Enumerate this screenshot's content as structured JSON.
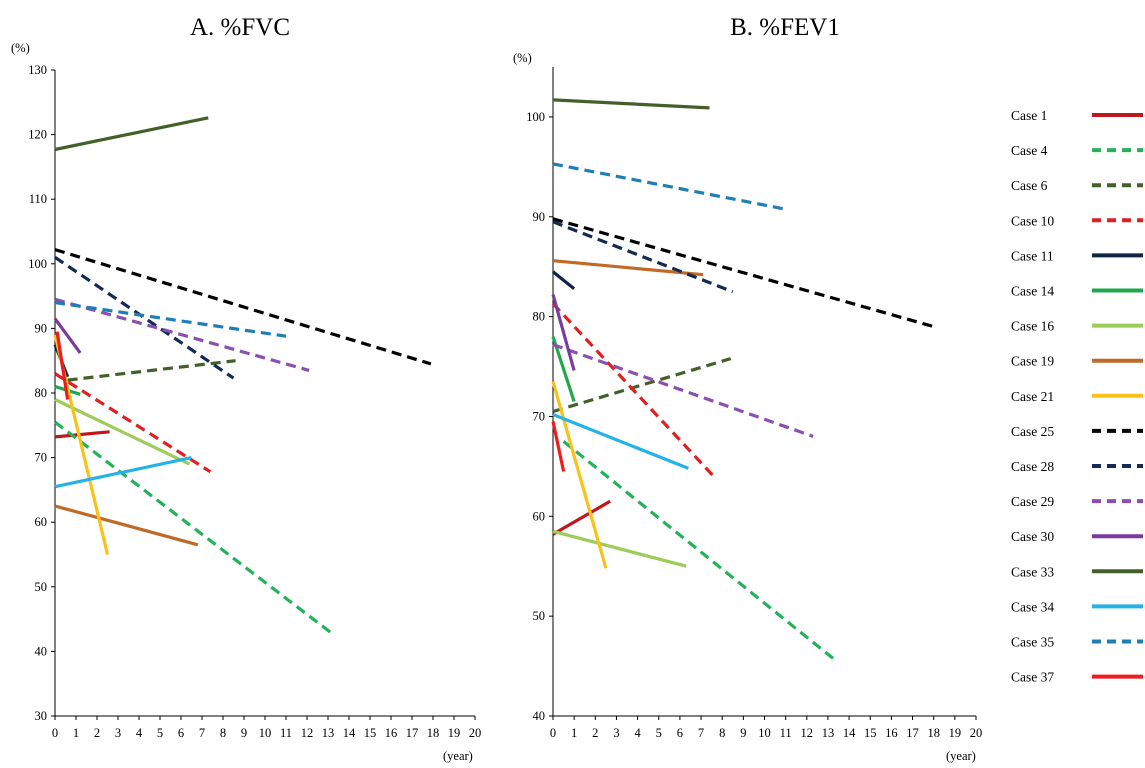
{
  "chart_data": [
    {
      "type": "line",
      "title": "A. %FVC",
      "y_unit": "(%)",
      "x_unit": "(year)",
      "xlim": [
        0,
        20
      ],
      "ylim": [
        30,
        130
      ],
      "xticks": [
        0,
        1,
        2,
        3,
        4,
        5,
        6,
        7,
        8,
        9,
        10,
        11,
        12,
        13,
        14,
        15,
        16,
        17,
        18,
        19,
        20
      ],
      "yticks": [
        30,
        40,
        50,
        60,
        70,
        80,
        90,
        100,
        110,
        120,
        130
      ],
      "grid": false,
      "series": [
        {
          "name": "Case 1",
          "x": [
            0,
            2.6
          ],
          "y": [
            73.2,
            74
          ]
        },
        {
          "name": "Case 4",
          "x": [
            0,
            13.1
          ],
          "y": [
            75.5,
            43
          ]
        },
        {
          "name": "Case 6",
          "x": [
            0.6,
            8.6
          ],
          "y": [
            82,
            85
          ]
        },
        {
          "name": "Case 10",
          "x": [
            0,
            7.4
          ],
          "y": [
            83,
            67.8
          ]
        },
        {
          "name": "Case 11",
          "x": [
            0,
            0.6
          ],
          "y": [
            87.5,
            82.5
          ]
        },
        {
          "name": "Case 14",
          "x": [
            0,
            1.2
          ],
          "y": [
            81,
            79.8
          ]
        },
        {
          "name": "Case 16",
          "x": [
            0,
            6.4
          ],
          "y": [
            79,
            69
          ]
        },
        {
          "name": "Case 19",
          "x": [
            0,
            6.8
          ],
          "y": [
            62.5,
            56.5
          ]
        },
        {
          "name": "Case 21",
          "x": [
            0,
            2.5
          ],
          "y": [
            89,
            55
          ]
        },
        {
          "name": "Case 25",
          "x": [
            0,
            17.9
          ],
          "y": [
            102.2,
            84.5
          ]
        },
        {
          "name": "Case 28",
          "x": [
            0,
            8.5
          ],
          "y": [
            101,
            82.3
          ]
        },
        {
          "name": "Case 29",
          "x": [
            0,
            12.1
          ],
          "y": [
            94.5,
            83.5
          ]
        },
        {
          "name": "Case 30",
          "x": [
            0,
            1.2
          ],
          "y": [
            91.5,
            86.2
          ]
        },
        {
          "name": "Case 33",
          "x": [
            0,
            7.3
          ],
          "y": [
            117.7,
            122.6
          ]
        },
        {
          "name": "Case 34",
          "x": [
            0,
            6.5
          ],
          "y": [
            65.5,
            70
          ]
        },
        {
          "name": "Case 35",
          "x": [
            0,
            11
          ],
          "y": [
            94,
            88.8
          ]
        },
        {
          "name": "Case 37",
          "x": [
            0.1,
            0.6
          ],
          "y": [
            89.5,
            79
          ]
        }
      ]
    },
    {
      "type": "line",
      "title": "B. %FEV1",
      "y_unit": "(%)",
      "x_unit": "(year)",
      "xlim": [
        0,
        20
      ],
      "ylim": [
        40,
        105
      ],
      "xticks": [
        0,
        1,
        2,
        3,
        4,
        5,
        6,
        7,
        8,
        9,
        10,
        11,
        12,
        13,
        14,
        15,
        16,
        17,
        18,
        19,
        20
      ],
      "yticks": [
        40,
        50,
        60,
        70,
        80,
        90,
        100
      ],
      "grid": false,
      "series": [
        {
          "name": "Case 1",
          "x": [
            0,
            2.7
          ],
          "y": [
            58.2,
            61.5
          ]
        },
        {
          "name": "Case 4",
          "x": [
            0.5,
            13.4
          ],
          "y": [
            67.5,
            45.5
          ]
        },
        {
          "name": "Case 6",
          "x": [
            0,
            8.4
          ],
          "y": [
            70.5,
            75.8
          ]
        },
        {
          "name": "Case 10",
          "x": [
            0,
            7.6
          ],
          "y": [
            81.3,
            64
          ]
        },
        {
          "name": "Case 11",
          "x": [
            0,
            1
          ],
          "y": [
            84.5,
            82.8
          ]
        },
        {
          "name": "Case 14",
          "x": [
            0,
            1
          ],
          "y": [
            78,
            71.5
          ]
        },
        {
          "name": "Case 16",
          "x": [
            0,
            6.3
          ],
          "y": [
            58.5,
            55
          ]
        },
        {
          "name": "Case 19",
          "x": [
            0,
            7.1
          ],
          "y": [
            85.6,
            84.2
          ]
        },
        {
          "name": "Case 21",
          "x": [
            0,
            2.5
          ],
          "y": [
            73.5,
            54.8
          ]
        },
        {
          "name": "Case 25",
          "x": [
            0,
            18
          ],
          "y": [
            89.8,
            79
          ]
        },
        {
          "name": "Case 28",
          "x": [
            0,
            8.5
          ],
          "y": [
            89.5,
            82.5
          ]
        },
        {
          "name": "Case 29",
          "x": [
            0,
            12.3
          ],
          "y": [
            77.2,
            68
          ]
        },
        {
          "name": "Case 30",
          "x": [
            0,
            1
          ],
          "y": [
            82.2,
            74.6
          ]
        },
        {
          "name": "Case 33",
          "x": [
            0,
            7.4
          ],
          "y": [
            101.7,
            100.9
          ]
        },
        {
          "name": "Case 34",
          "x": [
            0,
            6.4
          ],
          "y": [
            70.2,
            64.8
          ]
        },
        {
          "name": "Case 35",
          "x": [
            0,
            10.9
          ],
          "y": [
            95.3,
            90.8
          ]
        },
        {
          "name": "Case 37",
          "x": [
            0,
            0.5
          ],
          "y": [
            69.5,
            64.5
          ]
        }
      ]
    }
  ],
  "legend": {
    "placement": "right",
    "items": [
      {
        "label": "Case 1",
        "color": "#c0161c",
        "dashed": false
      },
      {
        "label": "Case 4",
        "color": "#23b15a",
        "dashed": true
      },
      {
        "label": "Case 6",
        "color": "#44602a",
        "dashed": true
      },
      {
        "label": "Case 10",
        "color": "#e02020",
        "dashed": true
      },
      {
        "label": "Case 11",
        "color": "#0f2548",
        "dashed": false
      },
      {
        "label": "Case 14",
        "color": "#1fa84c",
        "dashed": false
      },
      {
        "label": "Case 16",
        "color": "#9ccc5a",
        "dashed": false
      },
      {
        "label": "Case 19",
        "color": "#c06a28",
        "dashed": false
      },
      {
        "label": "Case 21",
        "color": "#f8c218",
        "dashed": false
      },
      {
        "label": "Case 25",
        "color": "#000000",
        "dashed": true
      },
      {
        "label": "Case 28",
        "color": "#142a55",
        "dashed": true
      },
      {
        "label": "Case 29",
        "color": "#8a4fb0",
        "dashed": true
      },
      {
        "label": "Case 30",
        "color": "#7a3ba0",
        "dashed": false
      },
      {
        "label": "Case 33",
        "color": "#44602a",
        "dashed": false
      },
      {
        "label": "Case 34",
        "color": "#25b2e6",
        "dashed": false
      },
      {
        "label": "Case 35",
        "color": "#1f7fb5",
        "dashed": true
      },
      {
        "label": "Case 37",
        "color": "#ee1c1c",
        "dashed": false
      }
    ]
  }
}
